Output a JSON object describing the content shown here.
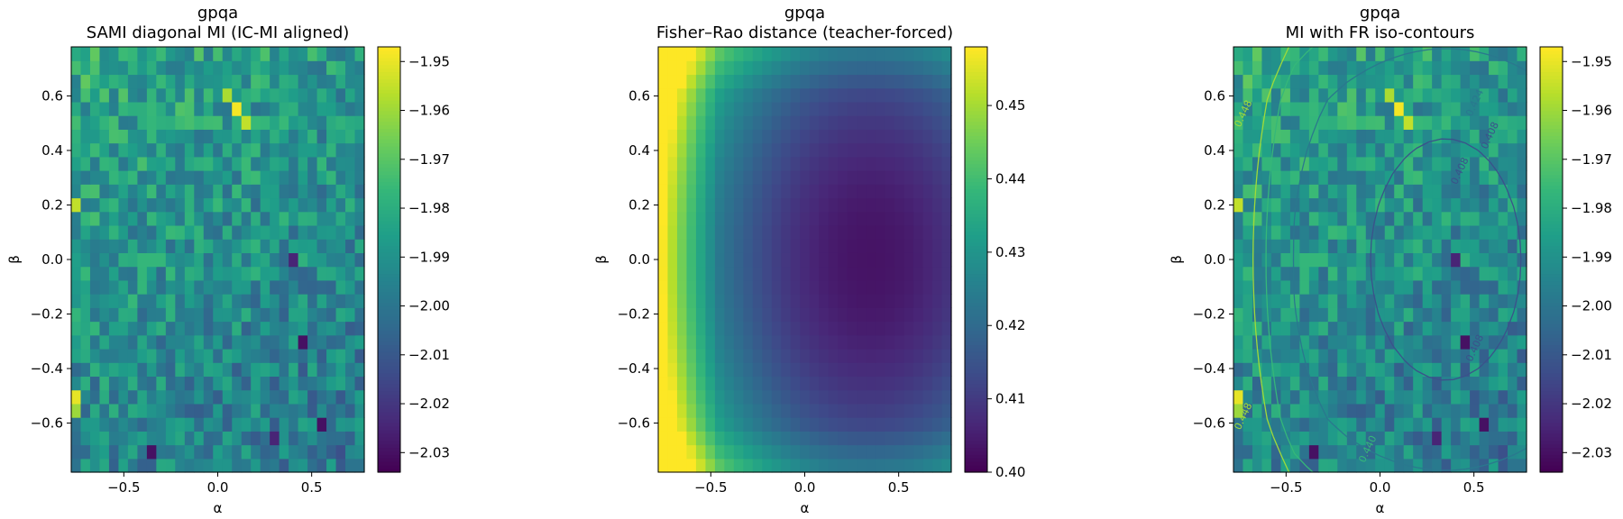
{
  "colormap": "viridis",
  "chart_data": [
    {
      "type": "heatmap",
      "title": "gpqa",
      "subtitle": "SAMI diagonal MI (IC-MI aligned)",
      "xlabel": "α",
      "ylabel": "β",
      "xlim": [
        -0.78,
        0.78
      ],
      "ylim": [
        -0.78,
        0.78
      ],
      "grid_size": 31,
      "x_ticks": [
        -0.5,
        0.0,
        0.5
      ],
      "x_tick_labels": [
        "−0.5",
        "0.0",
        "0.5"
      ],
      "y_ticks": [
        -0.6,
        -0.4,
        -0.2,
        0.0,
        0.2,
        0.4,
        0.6
      ],
      "y_tick_labels": [
        "−0.6",
        "−0.4",
        "−0.2",
        "0.0",
        "0.2",
        "0.4",
        "0.6"
      ],
      "colorbar": {
        "min": -2.034,
        "max": -1.947,
        "ticks": [
          -1.95,
          -1.96,
          -1.97,
          -1.98,
          -1.99,
          -2.0,
          -2.01,
          -2.02,
          -2.03
        ],
        "tick_labels": [
          "−1.95",
          "−1.96",
          "−1.97",
          "−1.98",
          "−1.99",
          "−2.00",
          "−2.01",
          "−2.02",
          "−2.03"
        ]
      },
      "field_description": "noisy MI field around -1.99, brighter (higher) in upper-left, darker patches lower-right",
      "pattern": "mi",
      "seed": 7
    },
    {
      "type": "heatmap",
      "title": "gpqa",
      "subtitle": "Fisher–Rao distance (teacher-forced)",
      "xlabel": "α",
      "ylabel": "β",
      "xlim": [
        -0.78,
        0.78
      ],
      "ylim": [
        -0.78,
        0.78
      ],
      "grid_size": 31,
      "x_ticks": [
        -0.5,
        0.0,
        0.5
      ],
      "x_tick_labels": [
        "−0.5",
        "0.0",
        "0.5"
      ],
      "y_ticks": [
        -0.6,
        -0.4,
        -0.2,
        0.0,
        0.2,
        0.4,
        0.6
      ],
      "y_tick_labels": [
        "−0.6",
        "−0.4",
        "−0.2",
        "0.0",
        "0.2",
        "0.4",
        "0.6"
      ],
      "colorbar": {
        "min": 0.4,
        "max": 0.458,
        "ticks": [
          0.45,
          0.44,
          0.43,
          0.42,
          0.41,
          0.4
        ],
        "tick_labels": [
          "0.45",
          "0.44",
          "0.43",
          "0.42",
          "0.41",
          "0.40"
        ]
      },
      "field_description": "smooth FR field: high (~0.45) along left edge, minimum (~0.40) near alpha 0.35, beta 0",
      "pattern": "fr",
      "seed": 11
    },
    {
      "type": "heatmap",
      "title": "gpqa",
      "subtitle": "MI with FR iso-contours",
      "xlabel": "α",
      "ylabel": "β",
      "xlim": [
        -0.78,
        0.78
      ],
      "ylim": [
        -0.78,
        0.78
      ],
      "grid_size": 31,
      "x_ticks": [
        -0.5,
        0.0,
        0.5
      ],
      "x_tick_labels": [
        "−0.5",
        "0.0",
        "0.5"
      ],
      "y_ticks": [
        -0.6,
        -0.4,
        -0.2,
        0.0,
        0.2,
        0.4,
        0.6
      ],
      "y_tick_labels": [
        "−0.6",
        "−0.4",
        "−0.2",
        "0.0",
        "0.2",
        "0.4",
        "0.6"
      ],
      "colorbar": {
        "min": -2.034,
        "max": -1.947,
        "ticks": [
          -1.95,
          -1.96,
          -1.97,
          -1.98,
          -1.99,
          -2.0,
          -2.01,
          -2.02,
          -2.03
        ],
        "tick_labels": [
          "−1.95",
          "−1.96",
          "−1.97",
          "−1.98",
          "−1.99",
          "−2.00",
          "−2.01",
          "−2.02",
          "−2.03"
        ]
      },
      "contour_levels": [
        0.408,
        0.424,
        0.44,
        0.448
      ],
      "contour_labels": [
        "0.408",
        "0.424",
        "0.440",
        "0.448"
      ],
      "pattern": "mi",
      "seed": 7
    }
  ]
}
